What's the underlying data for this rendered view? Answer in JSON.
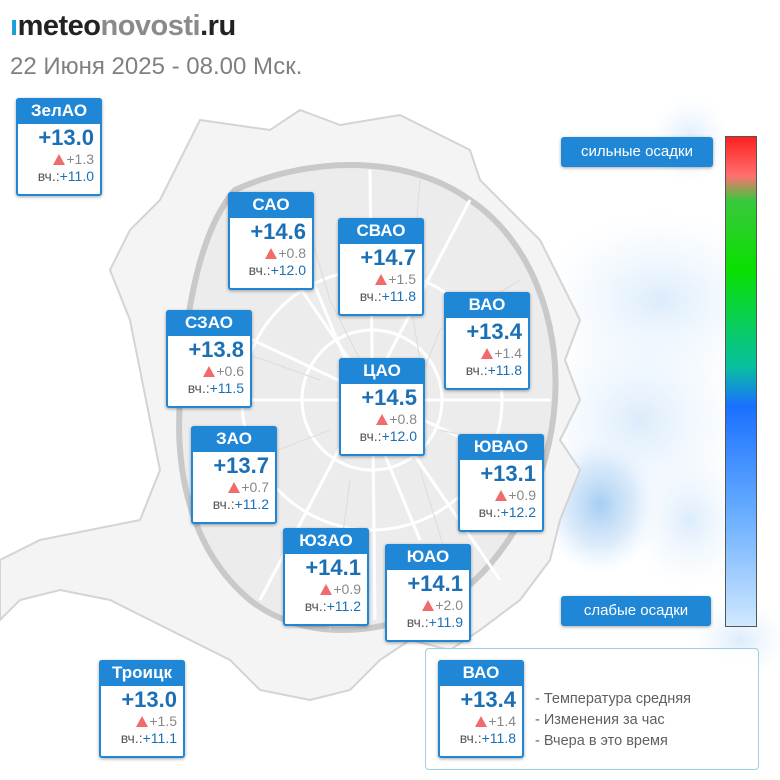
{
  "header": {
    "logo_mark": "ı",
    "logo_part1": "meteo",
    "logo_part2": "novosti",
    "logo_part3": ".ru",
    "date": "22 Июня 2025 - 08.00 Мск."
  },
  "prev_prefix": "вч.:",
  "districts": [
    {
      "id": "zelao",
      "name": "ЗелАО",
      "temp": "+13.0",
      "delta": "+1.3",
      "prev": "+11.0"
    },
    {
      "id": "sao",
      "name": "САО",
      "temp": "+14.6",
      "delta": "+0.8",
      "prev": "+12.0"
    },
    {
      "id": "svao",
      "name": "СВАО",
      "temp": "+14.7",
      "delta": "+1.5",
      "prev": "+11.8"
    },
    {
      "id": "vao",
      "name": "ВАО",
      "temp": "+13.4",
      "delta": "+1.4",
      "prev": "+11.8"
    },
    {
      "id": "szao",
      "name": "СЗАО",
      "temp": "+13.8",
      "delta": "+0.6",
      "prev": "+11.5"
    },
    {
      "id": "cao",
      "name": "ЦАО",
      "temp": "+14.5",
      "delta": "+0.8",
      "prev": "+12.0"
    },
    {
      "id": "zao",
      "name": "ЗАО",
      "temp": "+13.7",
      "delta": "+0.7",
      "prev": "+11.2"
    },
    {
      "id": "yuvao",
      "name": "ЮВАО",
      "temp": "+13.1",
      "delta": "+0.9",
      "prev": "+12.2"
    },
    {
      "id": "yuzao",
      "name": "ЮЗАО",
      "temp": "+14.1",
      "delta": "+0.9",
      "prev": "+11.2"
    },
    {
      "id": "yuao",
      "name": "ЮАО",
      "temp": "+14.1",
      "delta": "+2.0",
      "prev": "+11.9"
    },
    {
      "id": "troitsk",
      "name": "Троицк",
      "temp": "+13.0",
      "delta": "+1.5",
      "prev": "+11.1"
    }
  ],
  "precip_legend": {
    "strong": "сильные осадки",
    "weak": "слабые осадки"
  },
  "legend": {
    "sample": {
      "name": "ВАО",
      "temp": "+13.4",
      "delta": "+1.4",
      "prev": "+11.8"
    },
    "line1": "- Температура средняя",
    "line2": "- Изменения за час",
    "line3": "- Вчера в это время"
  },
  "icons": {
    "delta_up": "triangle-up-icon"
  },
  "colors": {
    "accent": "#1f87d6",
    "temp": "#1a6fb5",
    "delta_up": "#f06b6b",
    "precip_strong": "#ff2020",
    "precip_weak": "#d0e8ff"
  }
}
